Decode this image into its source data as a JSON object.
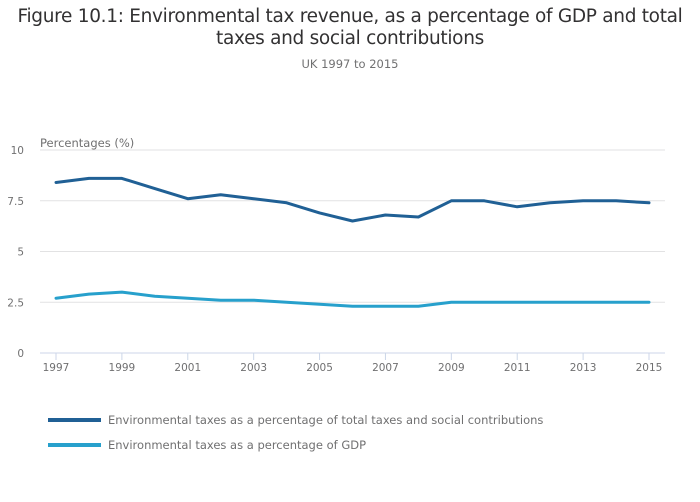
{
  "header": {
    "title_line1": "Figure 10.1: Environmental tax revenue, as a percentage of GDP and total",
    "title_line2": "taxes and social contributions",
    "subtitle": "UK 1997 to 2015"
  },
  "chart_data": {
    "type": "line",
    "title": "Figure 10.1: Environmental tax revenue, as a percentage of GDP and total taxes and social contributions",
    "subtitle": "UK 1997 to 2015",
    "xlabel": "",
    "ylabel": "Percentages (%)",
    "x": [
      1997,
      1998,
      1999,
      2000,
      2001,
      2002,
      2003,
      2004,
      2005,
      2006,
      2007,
      2008,
      2009,
      2010,
      2011,
      2012,
      2013,
      2014,
      2015
    ],
    "xticks": [
      "1997",
      "1999",
      "2001",
      "2003",
      "2005",
      "2007",
      "2009",
      "2011",
      "2013",
      "2015"
    ],
    "xlim": [
      1997,
      2015
    ],
    "yticks": [
      "0",
      "2.5",
      "5",
      "7.5",
      "10"
    ],
    "ytick_values": [
      0,
      2.5,
      5,
      7.5,
      10
    ],
    "ylim": [
      0,
      10
    ],
    "grid": "horizontal",
    "legend_position": "bottom-left",
    "series": [
      {
        "name": "Environmental taxes as a percentage of total taxes and social contributions",
        "color": "#206095",
        "values": [
          8.4,
          8.6,
          8.6,
          8.1,
          7.6,
          7.8,
          7.6,
          7.4,
          6.9,
          6.5,
          6.8,
          6.7,
          7.5,
          7.5,
          7.2,
          7.4,
          7.5,
          7.5,
          7.4
        ]
      },
      {
        "name": "Environmental taxes as a percentage of GDP",
        "color": "#27a0cc",
        "values": [
          2.7,
          2.9,
          3.0,
          2.8,
          2.7,
          2.6,
          2.6,
          2.5,
          2.4,
          2.3,
          2.3,
          2.3,
          2.5,
          2.5,
          2.5,
          2.5,
          2.5,
          2.5,
          2.5
        ]
      }
    ]
  },
  "colors": {
    "gridline": "#e2e2e3",
    "axis": "#ccd6e8",
    "text_muted": "#707071",
    "title": "#323132"
  }
}
